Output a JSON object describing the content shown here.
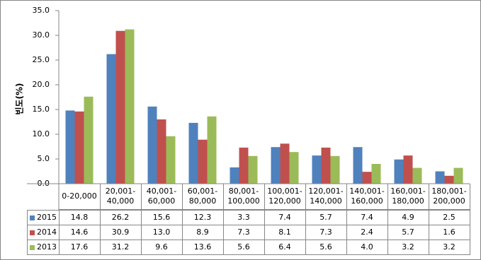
{
  "chart_data": {
    "type": "bar",
    "y_label": "빈도(%)",
    "categories": [
      "0-20,000",
      "20,001-40,000",
      "40,001-60,000",
      "60,001-80,000",
      "80,001-100,000",
      "100,001-120,000",
      "120,001-140,000",
      "140,001-160,000",
      "160,001-180,000",
      "180,001-200,000"
    ],
    "series": [
      {
        "name": "2015",
        "color": "#4f81bd",
        "values": [
          14.8,
          26.2,
          15.6,
          12.3,
          3.3,
          7.4,
          5.7,
          7.4,
          4.9,
          2.5
        ],
        "value_labels": [
          "14.8",
          "26.2",
          "15.6",
          "12.3",
          "3.3",
          "7.4",
          "5.7",
          "7.4",
          "4.9",
          "2.5"
        ]
      },
      {
        "name": "2014",
        "color": "#c0504d",
        "values": [
          14.6,
          30.9,
          13.0,
          8.9,
          7.3,
          8.1,
          7.3,
          2.4,
          5.7,
          1.6
        ],
        "value_labels": [
          "14.6",
          "30.9",
          "13.0",
          "8.9",
          "7.3",
          "8.1",
          "7.3",
          "2.4",
          "5.7",
          "1.6"
        ]
      },
      {
        "name": "2013",
        "color": "#9bbb59",
        "values": [
          17.6,
          31.2,
          9.6,
          13.6,
          5.6,
          6.4,
          5.6,
          4.0,
          3.2,
          3.2
        ],
        "value_labels": [
          "17.6",
          "31.2",
          "9.6",
          "13.6",
          "5.6",
          "6.4",
          "5.6",
          "4.0",
          "3.2",
          "3.2"
        ]
      }
    ],
    "ylim": [
      0,
      35
    ],
    "yticks": [
      {
        "value": 0,
        "label": "0.0"
      },
      {
        "value": 5,
        "label": "5.0"
      },
      {
        "value": 10,
        "label": "10.0"
      },
      {
        "value": 15,
        "label": "15.0"
      },
      {
        "value": 20,
        "label": "20.0"
      },
      {
        "value": 25,
        "label": "25.0"
      },
      {
        "value": 30,
        "label": "30.0"
      },
      {
        "value": 35,
        "label": "35.0"
      }
    ],
    "grid": false,
    "legend": "table"
  }
}
